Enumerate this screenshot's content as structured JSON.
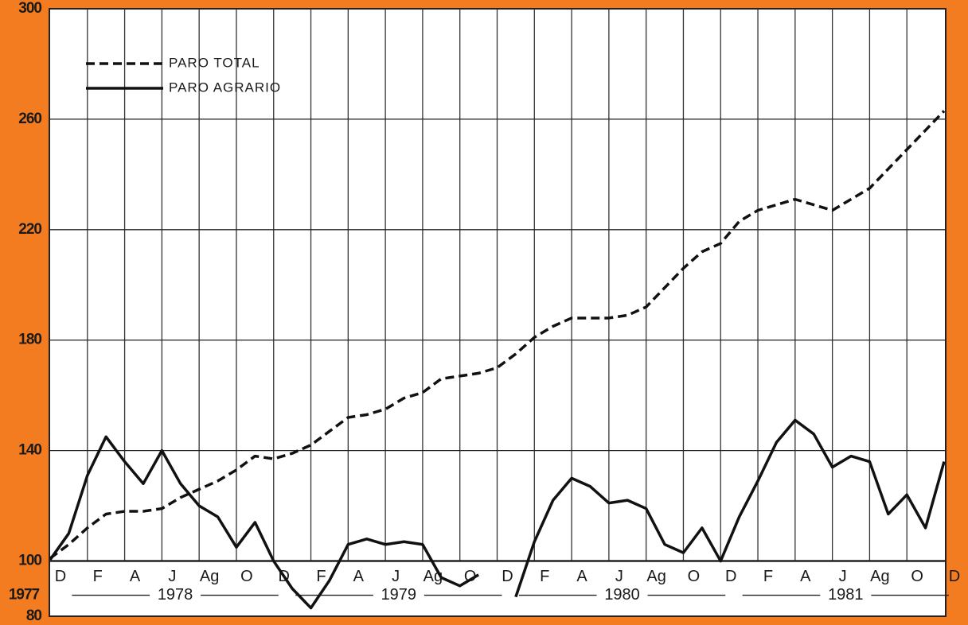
{
  "chart_data": {
    "type": "line",
    "categories": [
      "D",
      null,
      "F",
      null,
      "A",
      null,
      "J",
      null,
      "Ag",
      null,
      "O",
      null,
      "D",
      null,
      "F",
      null,
      "A",
      null,
      "J",
      null,
      "Ag",
      null,
      "O",
      null,
      "D",
      null,
      "F",
      null,
      "A",
      null,
      "J",
      null,
      "Ag",
      null,
      "O",
      null,
      "D",
      null,
      "F",
      null,
      "A",
      null,
      "J",
      null,
      "Ag",
      null,
      "O",
      null,
      "D"
    ],
    "years": [
      "1977",
      "1978",
      "1979",
      "1980",
      "1981"
    ],
    "series": [
      {
        "name": "PARO TOTAL",
        "color": "#111111",
        "style": "dashed",
        "values": [
          101,
          106,
          112,
          117,
          118,
          118,
          119,
          123,
          126,
          129,
          133,
          138,
          137,
          139,
          142,
          147,
          152,
          153,
          155,
          159,
          161,
          166,
          167,
          168,
          170,
          175,
          181,
          185,
          188,
          188,
          188,
          189,
          192,
          199,
          206,
          212,
          215,
          223,
          227,
          229,
          231,
          229,
          227,
          231,
          235,
          242,
          249,
          256,
          263
        ]
      },
      {
        "name": "PARO AGRARIO",
        "color": "#111111",
        "style": "solid",
        "values": [
          100.5,
          110,
          131,
          145,
          136,
          128,
          140,
          128,
          120,
          116,
          105,
          114,
          100,
          90,
          83,
          93,
          106,
          108,
          106,
          107,
          106,
          94,
          91,
          95,
          null,
          87,
          107,
          122,
          130,
          127,
          121,
          122,
          119,
          106,
          103,
          112,
          100,
          116,
          129,
          143,
          151,
          146,
          134,
          138,
          136,
          117,
          124,
          112,
          136
        ]
      }
    ],
    "ylim": [
      80,
      300
    ],
    "yticks": [
      80,
      100,
      140,
      180,
      220,
      260,
      300
    ],
    "grid": true
  }
}
